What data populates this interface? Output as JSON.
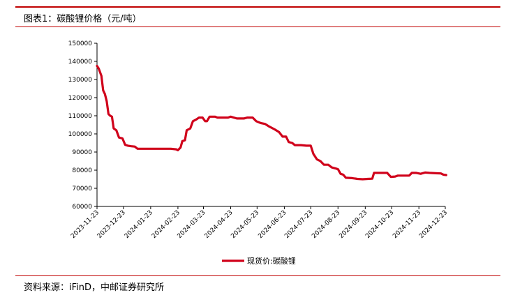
{
  "figure": {
    "title": "图表1：碳酸锂价格（元/吨）",
    "source": "资料来源：iFinD，中邮证券研究所"
  },
  "chart_data": {
    "type": "line",
    "title": "",
    "xlabel": "",
    "ylabel": "",
    "ylim": [
      60000,
      150000
    ],
    "y_ticks": [
      "60000",
      "70000",
      "80000",
      "90000",
      "100000",
      "110000",
      "120000",
      "130000",
      "140000",
      "150000"
    ],
    "x_ticks": [
      "2023-11-23",
      "2023-12-23",
      "2024-01-23",
      "2024-02-23",
      "2024-03-23",
      "2024-04-23",
      "2024-05-23",
      "2024-06-23",
      "2024-07-23",
      "2024-08-23",
      "2024-09-23",
      "2024-10-23",
      "2024-11-23",
      "2024-12-23"
    ],
    "grid": false,
    "legend_position": "bottom-center",
    "series": [
      {
        "name": "现货价:碳酸锂",
        "color": "#d0021b",
        "points": [
          [
            "2023-11-23",
            137500
          ],
          [
            "2023-11-25",
            136000
          ],
          [
            "2023-11-28",
            132000
          ],
          [
            "2023-11-30",
            124000
          ],
          [
            "2023-12-02",
            122000
          ],
          [
            "2023-12-04",
            118000
          ],
          [
            "2023-12-06",
            111000
          ],
          [
            "2023-12-08",
            110000
          ],
          [
            "2023-12-10",
            109500
          ],
          [
            "2023-12-12",
            103000
          ],
          [
            "2023-12-15",
            102000
          ],
          [
            "2023-12-18",
            98000
          ],
          [
            "2023-12-22",
            97500
          ],
          [
            "2023-12-25",
            94000
          ],
          [
            "2023-12-28",
            93500
          ],
          [
            "2024-01-01",
            93200
          ],
          [
            "2024-01-05",
            93000
          ],
          [
            "2024-01-08",
            91800
          ],
          [
            "2024-01-15",
            91800
          ],
          [
            "2024-01-25",
            91800
          ],
          [
            "2024-02-05",
            91800
          ],
          [
            "2024-02-15",
            91800
          ],
          [
            "2024-02-21",
            91500
          ],
          [
            "2024-02-23",
            91000
          ],
          [
            "2024-02-26",
            92500
          ],
          [
            "2024-02-28",
            96000
          ],
          [
            "2024-03-02",
            96500
          ],
          [
            "2024-03-04",
            102000
          ],
          [
            "2024-03-08",
            103000
          ],
          [
            "2024-03-11",
            107000
          ],
          [
            "2024-03-15",
            108000
          ],
          [
            "2024-03-18",
            109000
          ],
          [
            "2024-03-22",
            109000
          ],
          [
            "2024-03-25",
            107000
          ],
          [
            "2024-03-27",
            107000
          ],
          [
            "2024-03-30",
            109500
          ],
          [
            "2024-04-05",
            109500
          ],
          [
            "2024-04-08",
            109000
          ],
          [
            "2024-04-20",
            109000
          ],
          [
            "2024-04-23",
            109500
          ],
          [
            "2024-04-30",
            108500
          ],
          [
            "2024-05-08",
            108500
          ],
          [
            "2024-05-12",
            109000
          ],
          [
            "2024-05-18",
            109000
          ],
          [
            "2024-05-22",
            107000
          ],
          [
            "2024-05-27",
            106000
          ],
          [
            "2024-06-01",
            105500
          ],
          [
            "2024-06-06",
            104000
          ],
          [
            "2024-06-12",
            102500
          ],
          [
            "2024-06-17",
            101000
          ],
          [
            "2024-06-21",
            98500
          ],
          [
            "2024-06-25",
            98500
          ],
          [
            "2024-06-28",
            95500
          ],
          [
            "2024-07-02",
            95000
          ],
          [
            "2024-07-05",
            93800
          ],
          [
            "2024-07-12",
            93800
          ],
          [
            "2024-07-18",
            93500
          ],
          [
            "2024-07-23",
            93500
          ],
          [
            "2024-07-26",
            89000
          ],
          [
            "2024-07-30",
            86000
          ],
          [
            "2024-08-03",
            85000
          ],
          [
            "2024-08-07",
            83000
          ],
          [
            "2024-08-12",
            83000
          ],
          [
            "2024-08-16",
            81500
          ],
          [
            "2024-08-20",
            81000
          ],
          [
            "2024-08-23",
            80500
          ],
          [
            "2024-08-26",
            78000
          ],
          [
            "2024-08-29",
            77500
          ],
          [
            "2024-09-01",
            75800
          ],
          [
            "2024-09-08",
            75600
          ],
          [
            "2024-09-14",
            75200
          ],
          [
            "2024-09-20",
            75000
          ],
          [
            "2024-09-26",
            75200
          ],
          [
            "2024-10-01",
            75300
          ],
          [
            "2024-10-03",
            78500
          ],
          [
            "2024-10-10",
            78500
          ],
          [
            "2024-10-18",
            78500
          ],
          [
            "2024-10-22",
            76300
          ],
          [
            "2024-10-27",
            76500
          ],
          [
            "2024-10-30",
            77000
          ],
          [
            "2024-11-05",
            77000
          ],
          [
            "2024-11-12",
            77000
          ],
          [
            "2024-11-15",
            78500
          ],
          [
            "2024-11-20",
            78500
          ],
          [
            "2024-11-25",
            78000
          ],
          [
            "2024-11-30",
            78700
          ],
          [
            "2024-12-05",
            78500
          ],
          [
            "2024-12-12",
            78300
          ],
          [
            "2024-12-18",
            78200
          ],
          [
            "2024-12-21",
            77500
          ],
          [
            "2024-12-24",
            77300
          ]
        ]
      }
    ]
  }
}
